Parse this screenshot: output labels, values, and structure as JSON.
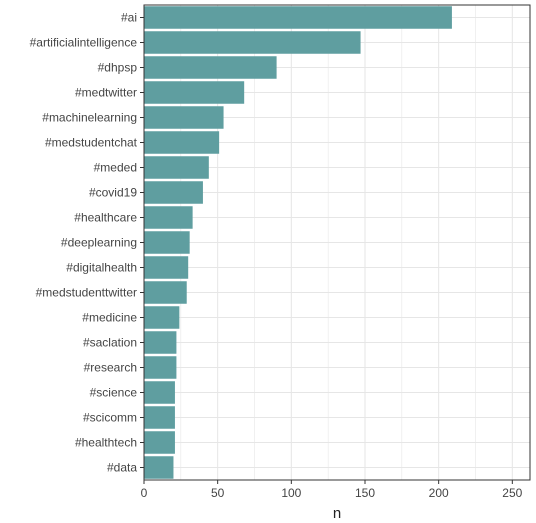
{
  "chart_data": {
    "type": "bar",
    "orientation": "horizontal",
    "categories": [
      "#ai",
      "#artificialintelligence",
      "#dhpsp",
      "#medtwitter",
      "#machinelearning",
      "#medstudentchat",
      "#meded",
      "#covid19",
      "#healthcare",
      "#deeplearning",
      "#digitalhealth",
      "#medstudenttwitter",
      "#medicine",
      "#saclation",
      "#research",
      "#science",
      "#scicomm",
      "#healthtech",
      "#data"
    ],
    "values": [
      209,
      147,
      90,
      68,
      54,
      51,
      44,
      40,
      33,
      31,
      30,
      29,
      24,
      22,
      22,
      21,
      21,
      21,
      20
    ],
    "xlabel": "n",
    "ylabel": "",
    "xlim": [
      0,
      262
    ],
    "xticks": [
      0,
      50,
      100,
      150,
      200,
      250
    ],
    "grid": true,
    "bar_color": "#5f9ea0",
    "grid_color": "#e6e6e6",
    "panel_border_color": "#333333"
  }
}
